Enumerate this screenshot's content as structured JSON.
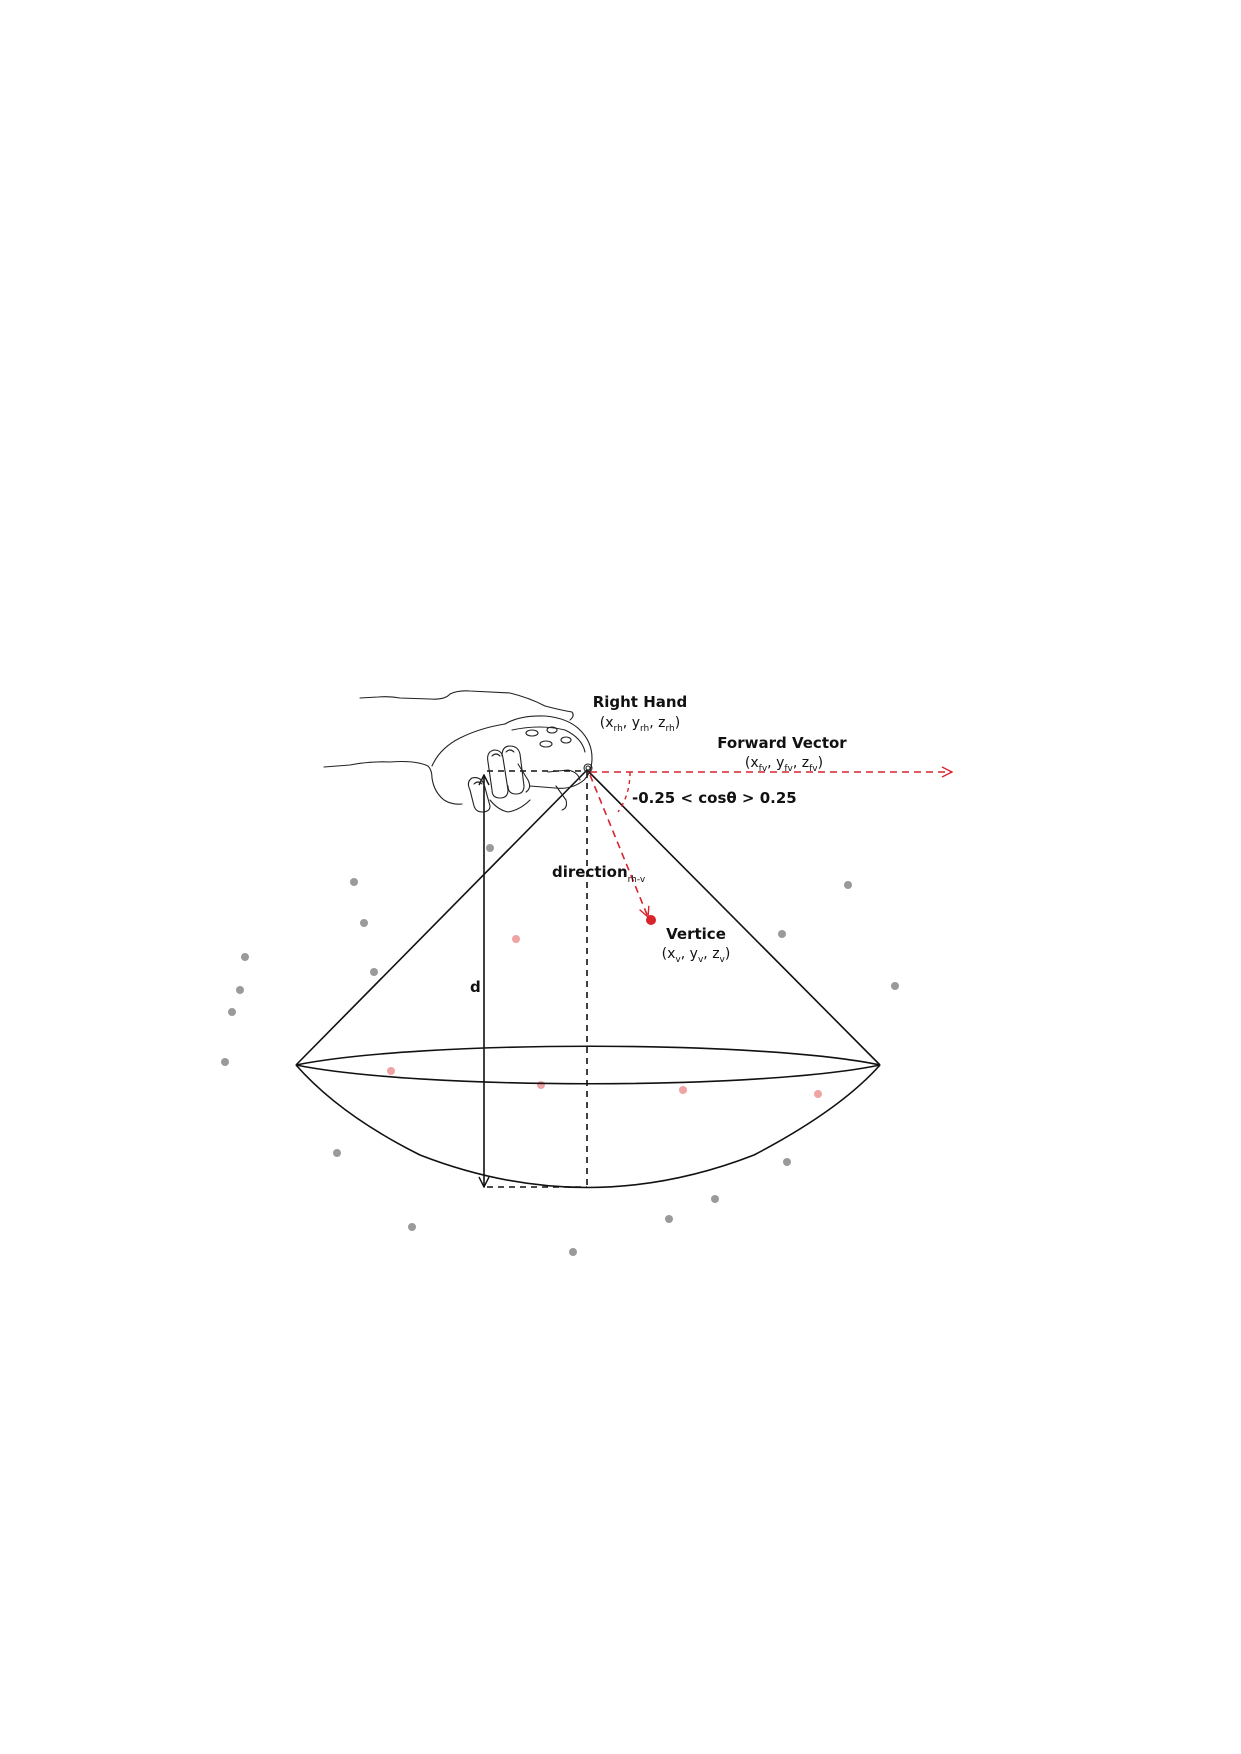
{
  "colors": {
    "line": "#111111",
    "accent_red": "#d9232d",
    "point_gray": "#9a9a9a",
    "point_pink": "#f0a3a3"
  },
  "labels": {
    "right_hand": {
      "title": "Right Hand",
      "open": "(",
      "x": "x",
      "x_sub": "rh",
      "sep1": ", ",
      "y": "y",
      "y_sub": "rh",
      "sep2": ", ",
      "z": "z",
      "z_sub": "rh",
      "close": ")"
    },
    "forward_vector": {
      "title": "Forward Vector",
      "open": "(",
      "x": "x",
      "x_sub": "fv",
      "sep1": ", ",
      "y": "y",
      "y_sub": "fv",
      "sep2": ", ",
      "z": "z",
      "z_sub": "fv",
      "close": ")"
    },
    "condition": "-0.25 < cosθ > 0.25",
    "direction": {
      "main": "direction",
      "sub": "rh-v"
    },
    "vertice": {
      "title": "Vertice",
      "open": "(",
      "x": "x",
      "x_sub": "v",
      "sep1": ", ",
      "y": "y",
      "y_sub": "v",
      "sep2": ", ",
      "z": "z",
      "z_sub": "v",
      "close": ")"
    },
    "distance": "d"
  },
  "icons": {
    "hand": "hand-holding-controller-icon"
  }
}
